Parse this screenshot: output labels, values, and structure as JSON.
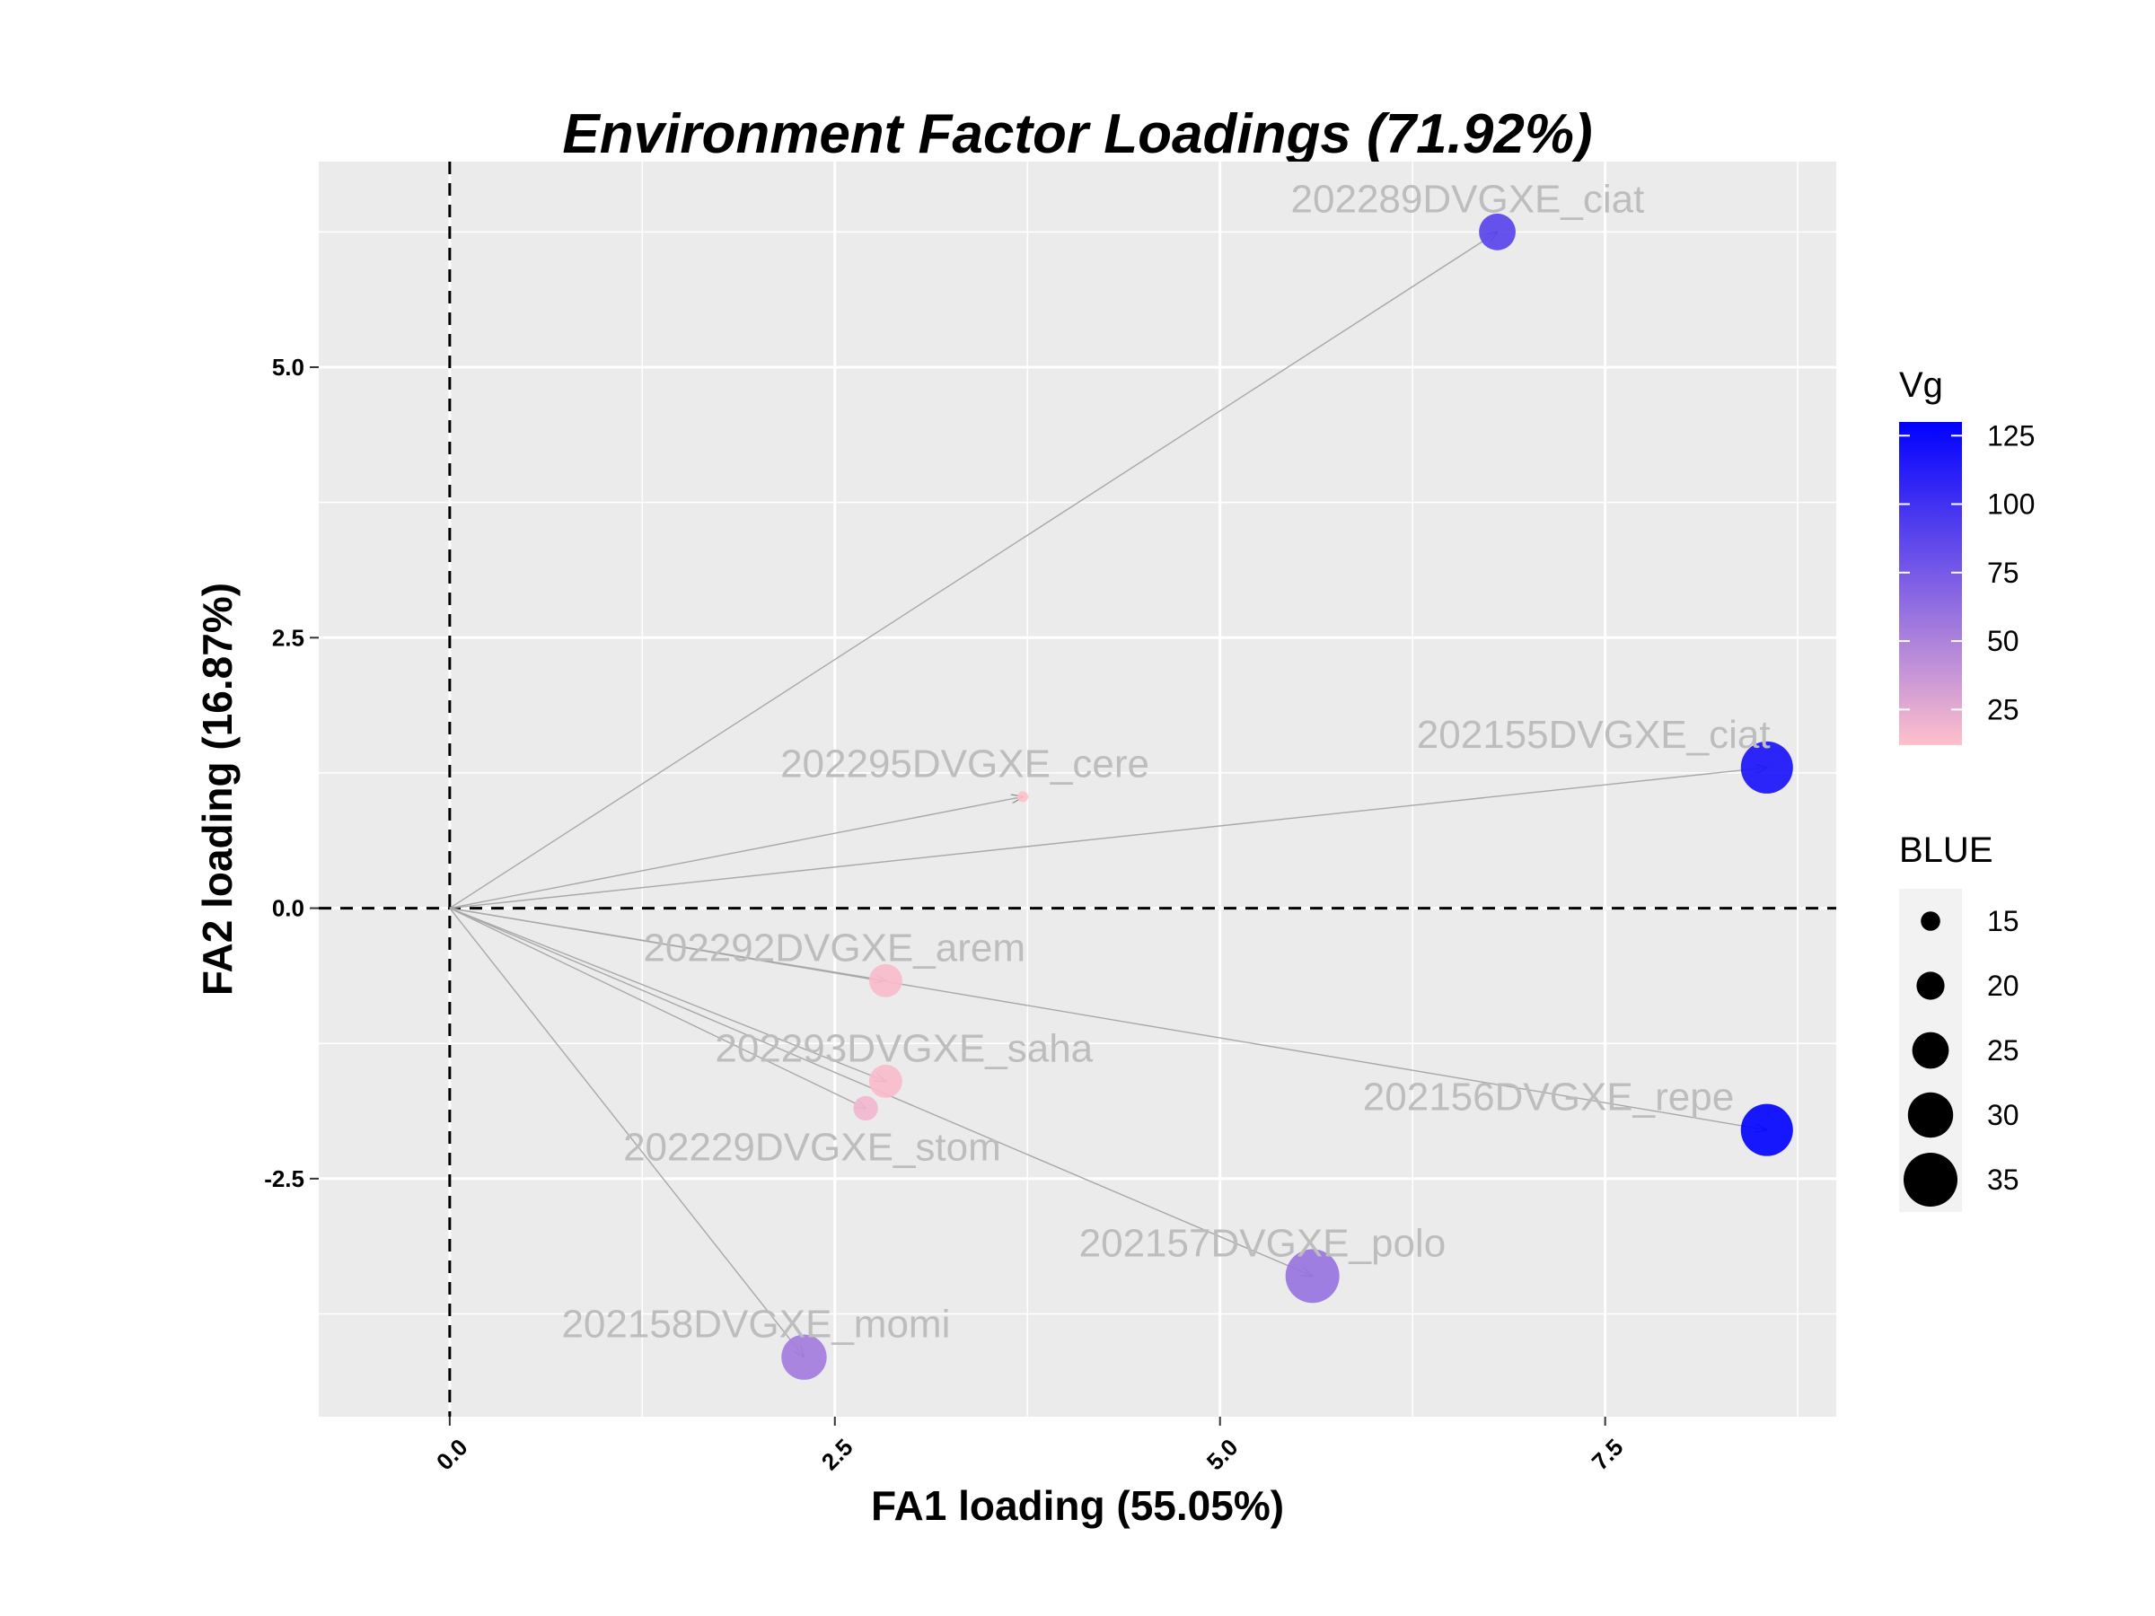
{
  "chart_data": {
    "type": "scatter",
    "title": "Environment Factor Loadings (71.92%)",
    "xlabel": "FA1 loading (55.05%)",
    "ylabel": "FA2 loading (16.87%)",
    "xlim": [
      -0.85,
      9.0
    ],
    "ylim": [
      -4.7,
      6.9
    ],
    "x_ticks": [
      {
        "value": 0.0,
        "label": "0.0"
      },
      {
        "value": 2.5,
        "label": "2.5"
      },
      {
        "value": 5.0,
        "label": "5.0"
      },
      {
        "value": 7.5,
        "label": "7.5"
      }
    ],
    "y_ticks": [
      {
        "value": -2.5,
        "label": "-2.5"
      },
      {
        "value": 0.0,
        "label": "0.0"
      },
      {
        "value": 2.5,
        "label": "2.5"
      },
      {
        "value": 5.0,
        "label": "5.0"
      }
    ],
    "reference_lines": {
      "x": 0,
      "y": 0,
      "style": "dashed"
    },
    "grid": true,
    "panel_background": "#ebebeb",
    "points": [
      {
        "label": "202289DVGXE_ciat",
        "x": 6.8,
        "y": 6.25,
        "vg": 90,
        "blue": 25
      },
      {
        "label": "202155DVGXE_ciat",
        "x": 8.55,
        "y": 1.3,
        "vg": 120,
        "blue": 34
      },
      {
        "label": "202295DVGXE_cere",
        "x": 3.72,
        "y": 1.03,
        "vg": 12,
        "blue": 10
      },
      {
        "label": "202292DVGXE_arem",
        "x": 2.83,
        "y": -0.67,
        "vg": 15,
        "blue": 23
      },
      {
        "label": "202293DVGXE_saha",
        "x": 2.83,
        "y": -1.6,
        "vg": 15,
        "blue": 23
      },
      {
        "label": "202229DVGXE_stom",
        "x": 2.7,
        "y": -1.85,
        "vg": 18,
        "blue": 18
      },
      {
        "label": "202156DVGXE_repe",
        "x": 8.55,
        "y": -2.05,
        "vg": 130,
        "blue": 34
      },
      {
        "label": "202157DVGXE_polo",
        "x": 5.6,
        "y": -3.4,
        "vg": 60,
        "blue": 35
      },
      {
        "label": "202158DVGXE_momi",
        "x": 2.3,
        "y": -4.15,
        "vg": 55,
        "blue": 30
      }
    ],
    "legend": {
      "placement": "right",
      "color": {
        "title": "Vg",
        "low_color": "#ffc0cb",
        "high_color": "#0000ff",
        "min": 12,
        "max": 130,
        "ticks": [
          {
            "value": 25,
            "label": "25"
          },
          {
            "value": 50,
            "label": "50"
          },
          {
            "value": 75,
            "label": "75"
          },
          {
            "value": 100,
            "label": "100"
          },
          {
            "value": 125,
            "label": "125"
          }
        ]
      },
      "size": {
        "title": "BLUE",
        "min": 10,
        "max": 35,
        "entries": [
          {
            "value": 15,
            "label": "15"
          },
          {
            "value": 20,
            "label": "20"
          },
          {
            "value": 25,
            "label": "25"
          },
          {
            "value": 30,
            "label": "30"
          },
          {
            "value": 35,
            "label": "35"
          }
        ]
      }
    }
  }
}
